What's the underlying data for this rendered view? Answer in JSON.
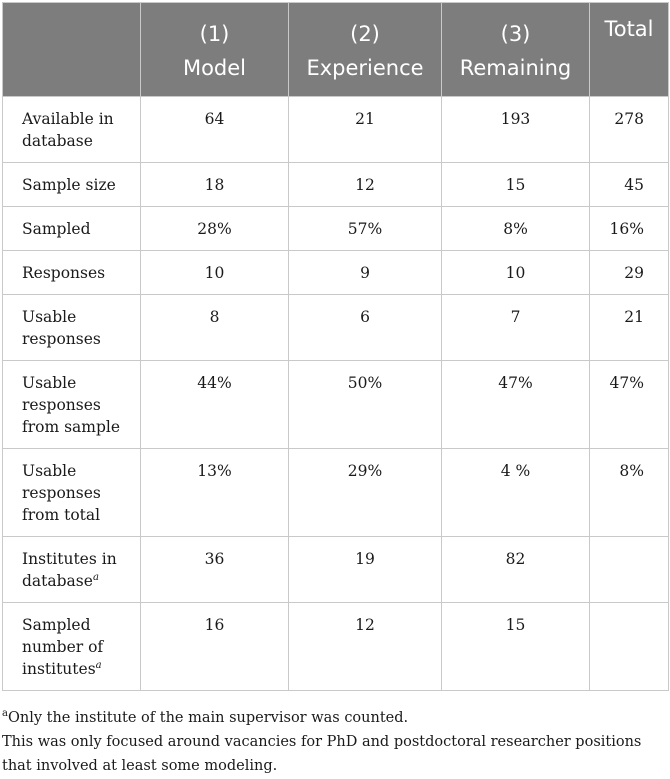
{
  "table": {
    "header": {
      "columns": [
        {
          "number": "(1)",
          "name": "Model"
        },
        {
          "number": "(2)",
          "name": "Experience"
        },
        {
          "number": "(3)",
          "name": "Remaining"
        }
      ],
      "total_label": "Total"
    },
    "rows": [
      {
        "label": "Available in database",
        "values": [
          "64",
          "21",
          "193",
          "278"
        ]
      },
      {
        "label": "Sample size",
        "values": [
          "18",
          "12",
          "15",
          "45"
        ]
      },
      {
        "label": "Sampled",
        "values": [
          "28%",
          "57%",
          "8%",
          "16%"
        ]
      },
      {
        "label": "Responses",
        "values": [
          "10",
          "9",
          "10",
          "29"
        ]
      },
      {
        "label": "Usable responses",
        "values": [
          "8",
          "6",
          "7",
          "21"
        ]
      },
      {
        "label": "Usable responses from sample",
        "values": [
          "44%",
          "50%",
          "47%",
          "47%"
        ]
      },
      {
        "label": "Usable responses from total",
        "values": [
          "13%",
          "29%",
          "4 %",
          "8%"
        ]
      },
      {
        "label": "Institutes in database",
        "footnote_mark": "a",
        "values": [
          "36",
          "19",
          "82",
          ""
        ]
      },
      {
        "label": "Sampled number of institutes",
        "footnote_mark": "a",
        "values": [
          "16",
          "12",
          "15",
          ""
        ]
      }
    ]
  },
  "footnotes": [
    {
      "mark": "a",
      "text": "Only the institute of the main supervisor was counted."
    },
    {
      "mark": "",
      "text": "This was only focused around vacancies for PhD and postdoctoral researcher positions that involved at least some modeling."
    }
  ]
}
